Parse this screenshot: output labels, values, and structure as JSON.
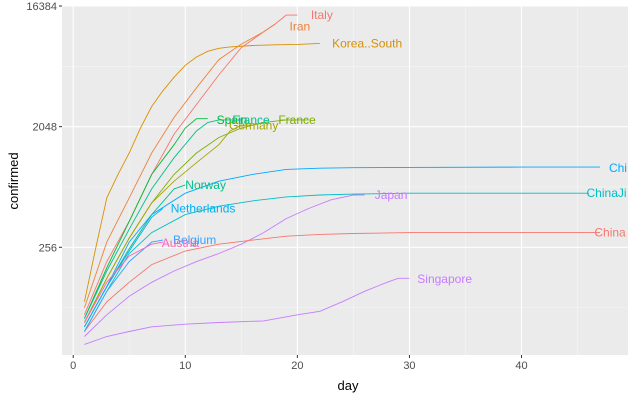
{
  "chart_data": {
    "type": "line",
    "title": "",
    "xlabel": "day",
    "ylabel": "confirmed",
    "y_scale": "log2",
    "xlim": [
      -1,
      49.5
    ],
    "ylim": [
      40,
      16384
    ],
    "x_ticks": [
      0,
      10,
      20,
      30,
      40
    ],
    "y_ticks": [
      256,
      2048,
      16384
    ],
    "grid": true,
    "legend": "none",
    "colors": {
      "panel": "#EBEBEB",
      "grid_major": "#FFFFFF",
      "grid_minor": "#F5F5F5"
    },
    "series": [
      {
        "name": "Italy",
        "color": "#F8766D",
        "x": [
          1,
          3,
          5,
          7,
          9,
          11,
          13,
          15,
          17,
          18,
          19,
          20
        ],
        "y": [
          80,
          200,
          400,
          900,
          1800,
          3000,
          5000,
          8000,
          10500,
          12000,
          14000,
          14000
        ]
      },
      {
        "name": "Iran",
        "color": "#EC823C",
        "x": [
          1,
          3,
          5,
          7,
          9,
          11,
          13,
          15,
          17,
          18
        ],
        "y": [
          90,
          280,
          600,
          1300,
          2400,
          4000,
          6500,
          8500,
          10500,
          12000
        ]
      },
      {
        "name": "Korea..South",
        "color": "#D89000",
        "x": [
          1,
          2,
          3,
          4,
          5,
          6,
          7,
          8,
          9,
          10,
          11,
          12,
          13,
          14,
          16,
          18,
          20,
          22
        ],
        "y": [
          100,
          250,
          600,
          900,
          1300,
          2000,
          2900,
          3800,
          4800,
          5900,
          6800,
          7500,
          7900,
          8100,
          8300,
          8400,
          8450,
          8600
        ]
      },
      {
        "name": "China",
        "color": "#00A9FF",
        "x": [
          1,
          3,
          5,
          7,
          10,
          13,
          16,
          19,
          22,
          25,
          30,
          40,
          47
        ],
        "y": [
          65,
          130,
          280,
          450,
          650,
          800,
          900,
          980,
          1000,
          1010,
          1015,
          1020,
          1020
        ]
      },
      {
        "name": "ChinaJi",
        "color": "#00BFC4",
        "x": [
          1,
          3,
          5,
          7,
          10,
          13,
          16,
          19,
          22,
          25,
          30,
          40,
          46
        ],
        "y": [
          60,
          120,
          230,
          330,
          450,
          520,
          570,
          610,
          630,
          640,
          650,
          650,
          650
        ]
      },
      {
        "name": "Japan",
        "color": "#C77CFF",
        "x": [
          1,
          3,
          5,
          7,
          9,
          11,
          13,
          15,
          17,
          19,
          21,
          23,
          25,
          26
        ],
        "y": [
          55,
          80,
          110,
          140,
          170,
          200,
          230,
          270,
          330,
          420,
          500,
          580,
          630,
          630
        ]
      },
      {
        "name": "China",
        "color": "#F8766D",
        "x": [
          1,
          3,
          5,
          7,
          10,
          13,
          16,
          19,
          22,
          25,
          30,
          40,
          47
        ],
        "y": [
          60,
          100,
          140,
          190,
          240,
          270,
          290,
          310,
          320,
          325,
          330,
          330,
          330
        ]
      },
      {
        "name": "Singapore",
        "color": "#C77CFF",
        "x": [
          1,
          3,
          5,
          7,
          10,
          13,
          17,
          20,
          22,
          24,
          26,
          28,
          29,
          30
        ],
        "y": [
          48,
          55,
          60,
          65,
          68,
          70,
          72,
          80,
          85,
          100,
          120,
          140,
          150,
          150
        ]
      },
      {
        "name": "Spain",
        "color": "#00BA38",
        "x": [
          1,
          3,
          5,
          7,
          9,
          10,
          11,
          12
        ],
        "y": [
          75,
          180,
          400,
          900,
          1500,
          2000,
          2350,
          2350
        ]
      },
      {
        "name": "France",
        "color": "#7CAE00",
        "x": [
          1,
          3,
          5,
          7,
          9,
          11,
          13,
          15,
          17,
          18,
          19,
          20,
          21
        ],
        "y": [
          70,
          150,
          300,
          550,
          900,
          1300,
          1700,
          2000,
          2200,
          2250,
          2300,
          2300,
          2300
        ]
      },
      {
        "name": "France",
        "color": "#00C08B",
        "x": [
          1,
          3,
          5,
          7,
          9,
          11,
          12,
          13,
          14,
          15
        ],
        "y": [
          75,
          170,
          350,
          700,
          1200,
          1900,
          2200,
          2300,
          2300,
          2300
        ]
      },
      {
        "name": "Germany",
        "color": "#A3A500",
        "x": [
          1,
          3,
          5,
          7,
          9,
          11,
          13,
          14,
          15,
          16
        ],
        "y": [
          70,
          150,
          300,
          550,
          800,
          1100,
          1500,
          1900,
          2100,
          2100
        ]
      },
      {
        "name": "Norway",
        "color": "#00C08B",
        "x": [
          1,
          3,
          5,
          7,
          9,
          10
        ],
        "y": [
          65,
          130,
          250,
          450,
          700,
          750
        ]
      },
      {
        "name": "Netherlands",
        "color": "#00B0F6",
        "x": [
          1,
          3,
          5,
          7,
          8
        ],
        "y": [
          65,
          130,
          240,
          430,
          500
        ]
      },
      {
        "name": "Belgium",
        "color": "#35A2FF",
        "x": [
          1,
          3,
          5,
          7,
          8
        ],
        "y": [
          60,
          120,
          200,
          280,
          290
        ]
      },
      {
        "name": "Austria",
        "color": "#FF62BC",
        "x": [
          1,
          3,
          5,
          7,
          8
        ],
        "y": [
          70,
          140,
          220,
          270,
          280
        ]
      }
    ],
    "labels": [
      {
        "text": "Italy",
        "x": 21.2,
        "y": 14000,
        "color": "#F8766D"
      },
      {
        "text": "Iran",
        "x": 19.3,
        "y": 11500,
        "color": "#EC823C"
      },
      {
        "text": "Korea..South",
        "x": 23.1,
        "y": 8600,
        "color": "#D89000"
      },
      {
        "text": "Spain",
        "x": 12.8,
        "y": 2300,
        "color": "#00BA38"
      },
      {
        "text": "France",
        "x": 14.2,
        "y": 2300,
        "color": "#00C08B"
      },
      {
        "text": "France",
        "x": 18.3,
        "y": 2300,
        "color": "#7CAE00"
      },
      {
        "text": "Germany",
        "x": 13.9,
        "y": 2080,
        "color": "#A3A500"
      },
      {
        "text": "Norway",
        "x": 10.0,
        "y": 750,
        "color": "#00C08B"
      },
      {
        "text": "Netherlands",
        "x": 8.7,
        "y": 500,
        "color": "#00B0F6"
      },
      {
        "text": "Japan",
        "x": 26.9,
        "y": 630,
        "color": "#C77CFF"
      },
      {
        "text": "ChinaJi",
        "x": 45.8,
        "y": 650,
        "color": "#00BFC4"
      },
      {
        "text": "Chi",
        "x": 47.8,
        "y": 1000,
        "color": "#00A9FF"
      },
      {
        "text": "China",
        "x": 46.5,
        "y": 330,
        "color": "#F8766D"
      },
      {
        "text": "Belgium",
        "x": 8.9,
        "y": 290,
        "color": "#35A2FF"
      },
      {
        "text": "Austria",
        "x": 7.9,
        "y": 275,
        "color": "#FF62BC"
      },
      {
        "text": "Singapore",
        "x": 30.7,
        "y": 148,
        "color": "#C77CFF"
      }
    ]
  }
}
